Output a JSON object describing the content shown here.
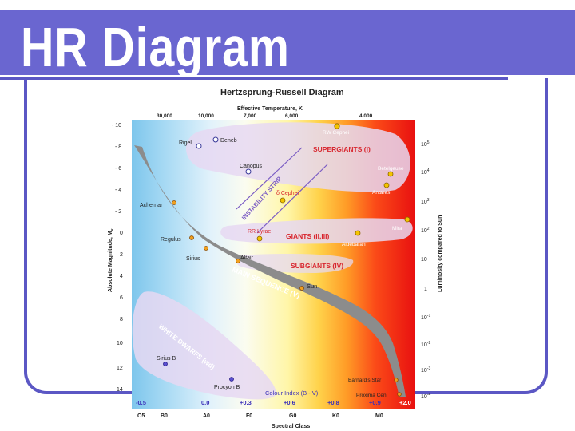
{
  "slide": {
    "title": "HR Diagram"
  },
  "diagram": {
    "title": "Hertzsprung-Russell Diagram",
    "top_axis_label": "Effective Temperature, K",
    "left_axis_label": "Absolute Magnitude, M",
    "left_axis_subscript": "v",
    "right_axis_label": "Luminosity compared to Sun",
    "bottom_axis_label": "Spectral Class",
    "colour_index_label": "Colour Index (B - V)",
    "temperature_ticks": [
      "30,000",
      "10,000",
      "7,000",
      "6,000",
      "4,000"
    ],
    "magnitude_ticks": [
      "- 10",
      "- 8",
      "- 6",
      "- 4",
      "- 2",
      "0",
      "2",
      "4",
      "6",
      "8",
      "10",
      "12",
      "14"
    ],
    "luminosity_ticks": [
      {
        "base": "10",
        "exp": "5"
      },
      {
        "base": "10",
        "exp": "4"
      },
      {
        "base": "10",
        "exp": "3"
      },
      {
        "base": "10",
        "exp": "2"
      },
      {
        "base": "10",
        "exp": ""
      },
      {
        "base": "1",
        "exp": ""
      },
      {
        "base": "10",
        "exp": "-1"
      },
      {
        "base": "10",
        "exp": "-2"
      },
      {
        "base": "10",
        "exp": "-3"
      },
      {
        "base": "10",
        "exp": "-4"
      }
    ],
    "spectral_classes": [
      "O5",
      "B0",
      "A0",
      "F0",
      "G0",
      "K0",
      "M0"
    ],
    "colour_indices": [
      "-0.5",
      "0.0",
      "+0.3",
      "+0.6",
      "+0.8",
      "+0.9",
      "+2.0"
    ],
    "region_labels": {
      "supergiants": "SUPERGIANTS (I)",
      "giants": "GIANTS (II,III)",
      "subgiants": "SUBGIANTS (IV)",
      "main_sequence": "MAIN SEQUENCE (V)",
      "white_dwarfs": "WHITE DWARFS (wd)",
      "instability_strip": "INSTABILITY STRIP"
    },
    "stars": [
      {
        "name": "RW Cephei",
        "color": "#f4c400",
        "type": "filled"
      },
      {
        "name": "Deneb",
        "color": "#ffffff",
        "type": "open"
      },
      {
        "name": "Rigel",
        "color": "#ffffff",
        "type": "open"
      },
      {
        "name": "Canopus",
        "color": "#ffffff",
        "type": "open"
      },
      {
        "name": "Betelgeuse",
        "color": "#f4c400",
        "type": "filled"
      },
      {
        "name": "Antares",
        "color": "#f4c400",
        "type": "filled"
      },
      {
        "name": "δ Cephei",
        "color": "#f4c400",
        "type": "filled"
      },
      {
        "name": "Achernar",
        "color": "#f0a020",
        "type": "filled"
      },
      {
        "name": "Mira",
        "color": "#f4c400",
        "type": "filled"
      },
      {
        "name": "RR Lyrae",
        "color": "#f4c400",
        "type": "filled"
      },
      {
        "name": "Aldebaran",
        "color": "#f4c400",
        "type": "filled"
      },
      {
        "name": "Regulus",
        "color": "#f0a020",
        "type": "filled"
      },
      {
        "name": "Sirius",
        "color": "#f0a020",
        "type": "filled"
      },
      {
        "name": "Altair",
        "color": "#f0a020",
        "type": "filled"
      },
      {
        "name": "Sun",
        "color": "#f0a020",
        "type": "filled"
      },
      {
        "name": "Sirius B",
        "color": "#5a4fd0",
        "type": "filled"
      },
      {
        "name": "Procyon B",
        "color": "#5a4fd0",
        "type": "filled"
      },
      {
        "name": "Barnard's Star",
        "color": "#f0a020",
        "type": "filled"
      },
      {
        "name": "Proxima Cen",
        "color": "#f0a020",
        "type": "filled"
      }
    ],
    "colors": {
      "title_bar": "#6a66d0",
      "frame": "#5b57c4",
      "main_sequence": "#8c8c8c",
      "region_fill": "#e6d8f2",
      "region_text": "#d8262e",
      "colour_index_text": "#3a2fb8"
    }
  }
}
